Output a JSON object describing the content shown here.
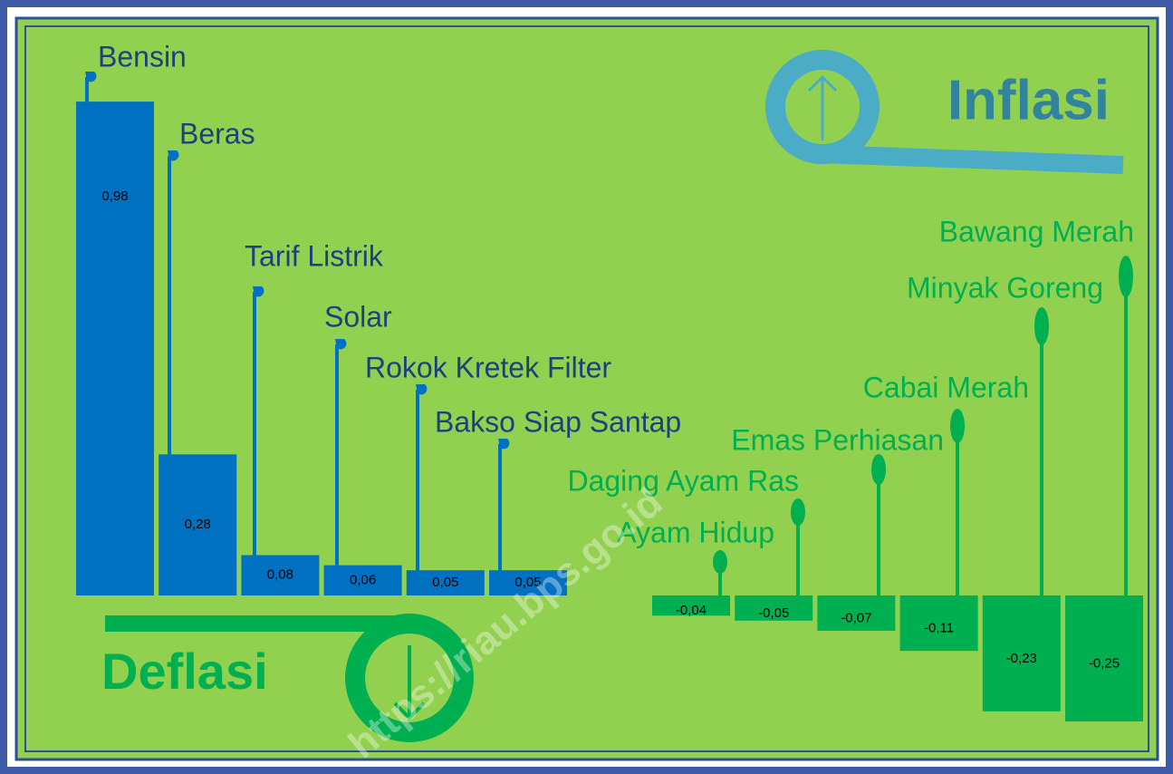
{
  "chart_data": [
    {
      "type": "bar",
      "title": "Inflasi",
      "categories": [
        "Bensin",
        "Beras",
        "Tarif Listrik",
        "Solar",
        "Rokok Kretek Filter",
        "Bakso Siap Santap"
      ],
      "values": [
        0.98,
        0.28,
        0.08,
        0.06,
        0.05,
        0.05
      ],
      "value_labels": [
        "0,98",
        "0,28",
        "0,08",
        "0,06",
        "0,05",
        "0,05"
      ],
      "color": "#0070c0"
    },
    {
      "type": "bar",
      "title": "Deflasi",
      "categories": [
        "Ayam Hidup",
        "Daging Ayam Ras",
        "Emas Perhiasan",
        "Cabai Merah",
        "Minyak Goreng",
        "Bawang Merah"
      ],
      "values": [
        -0.04,
        -0.05,
        -0.07,
        -0.11,
        -0.23,
        -0.25
      ],
      "value_labels": [
        "-0,04",
        "-0,05",
        "-0,07",
        "-0,11",
        "-0,23",
        "-0,25"
      ],
      "color": "#00b050"
    }
  ],
  "watermark": "https://riau.bps.go.id"
}
